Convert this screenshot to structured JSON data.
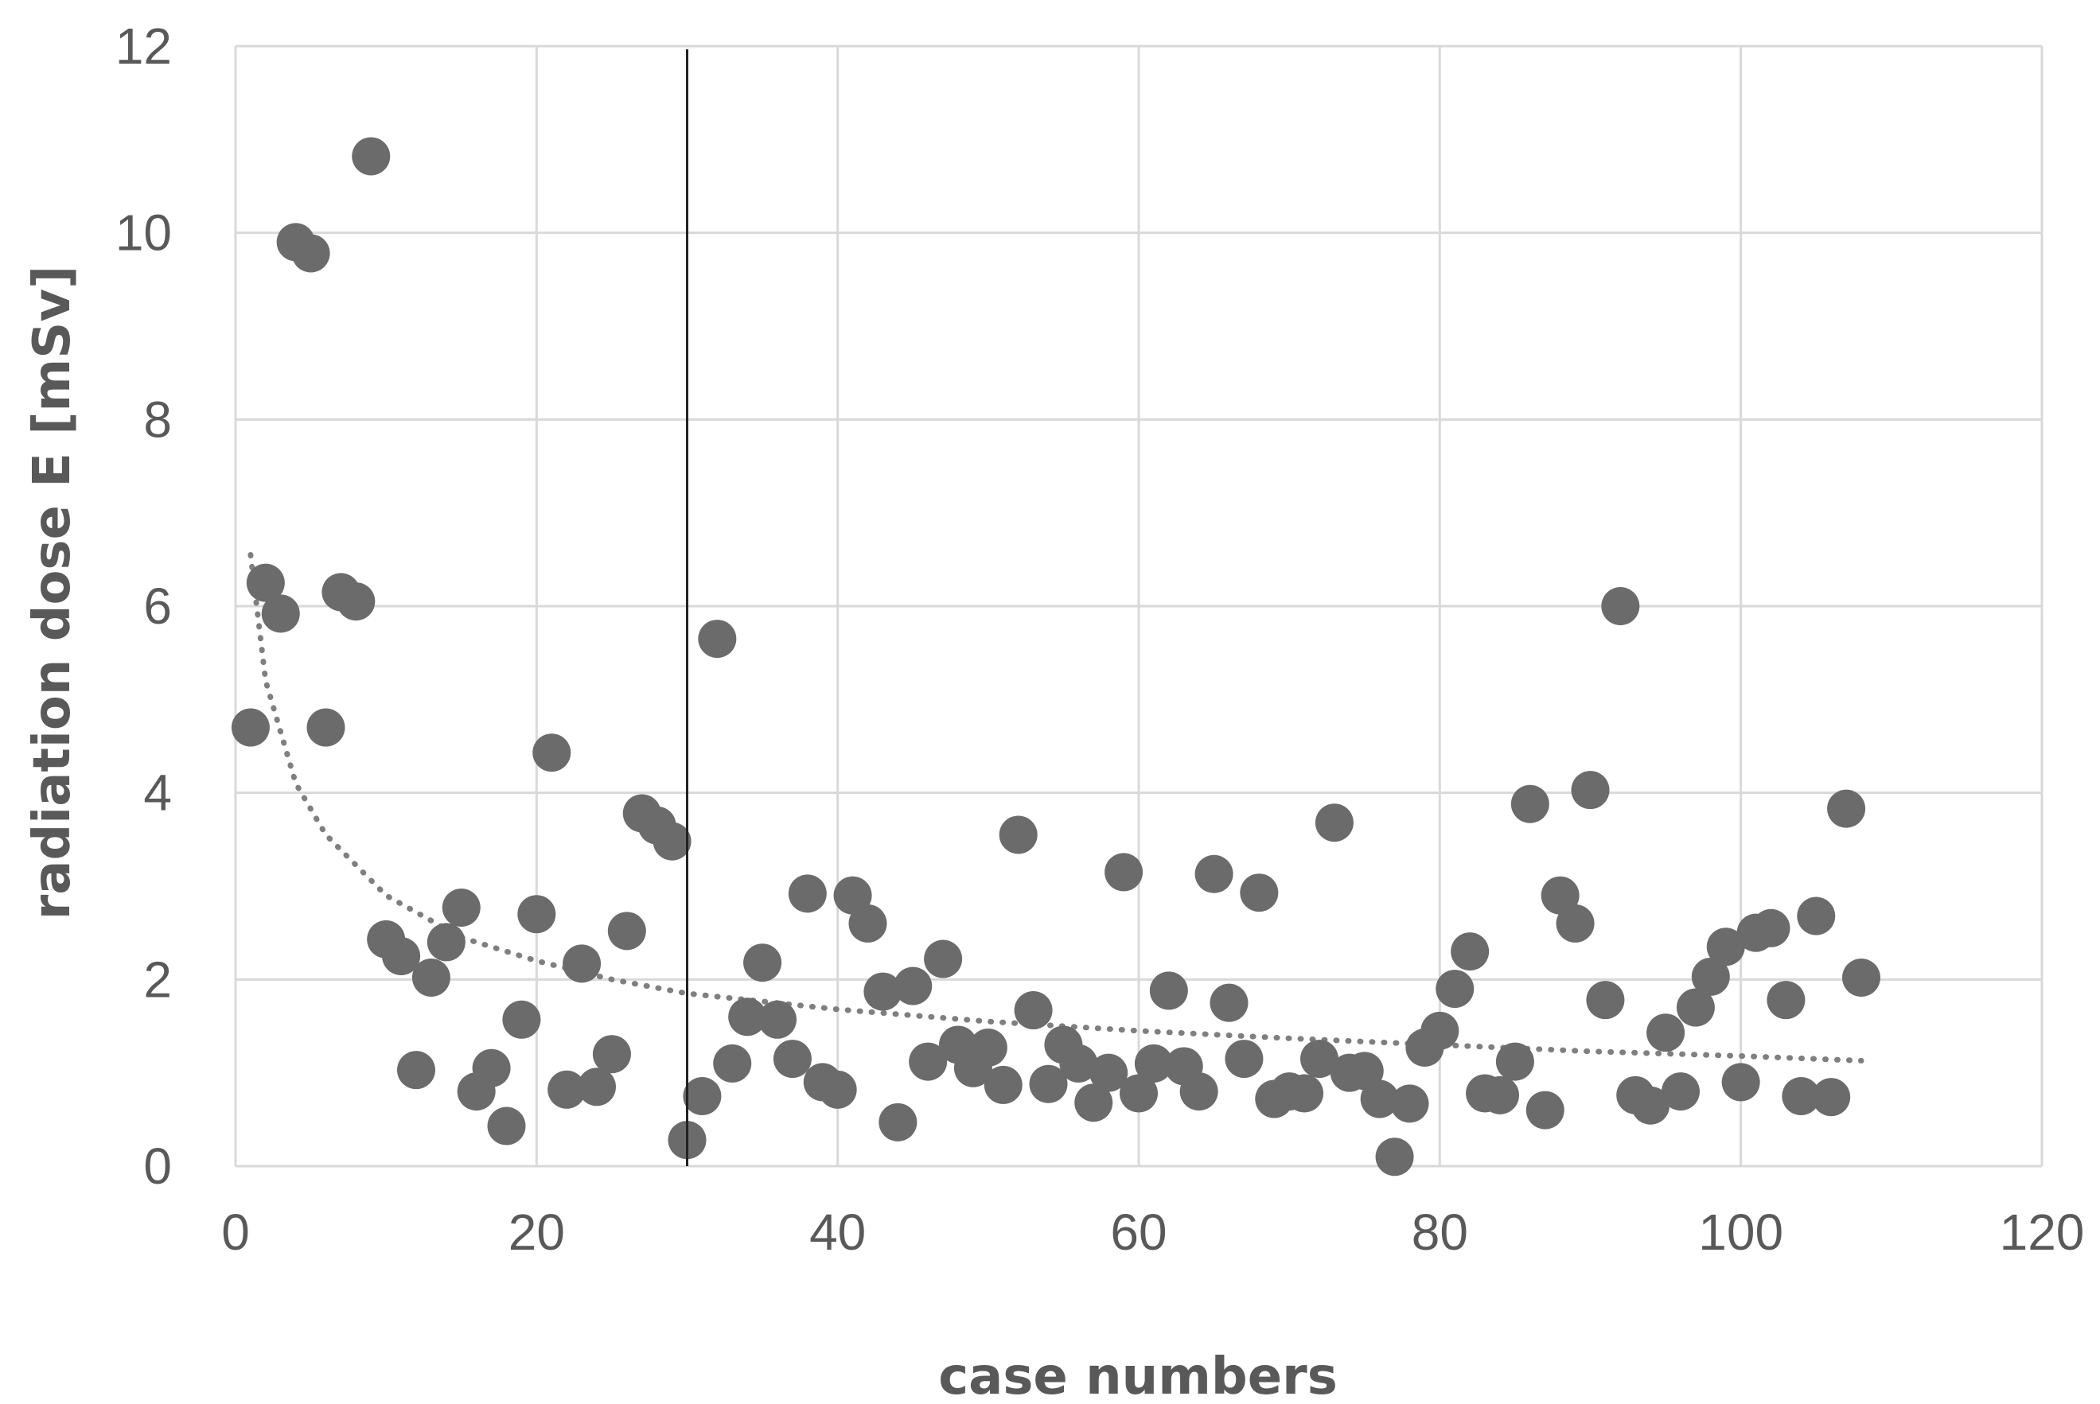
{
  "chart_data": {
    "type": "scatter",
    "title": "",
    "xlabel": "case numbers",
    "ylabel": "radiation dose E [mSv]",
    "xlim": [
      0,
      120
    ],
    "ylim": [
      0,
      12
    ],
    "x_ticks": [
      0,
      20,
      40,
      60,
      80,
      100,
      120
    ],
    "y_ticks": [
      0,
      2,
      4,
      6,
      8,
      10,
      12
    ],
    "grid": true,
    "legend": "none",
    "marker_color": "#6b6b6b",
    "vertical_reference_line_x": 30,
    "trendline": {
      "style": "dotted",
      "kind": "power",
      "x_range": [
        1,
        108
      ],
      "points": [
        [
          1,
          6.55
        ],
        [
          2,
          5.2
        ],
        [
          4,
          4.1
        ],
        [
          6,
          3.55
        ],
        [
          10,
          2.9
        ],
        [
          15,
          2.45
        ],
        [
          20,
          2.2
        ],
        [
          25,
          2.0
        ],
        [
          30,
          1.85
        ],
        [
          40,
          1.68
        ],
        [
          50,
          1.55
        ],
        [
          60,
          1.45
        ],
        [
          70,
          1.37
        ],
        [
          80,
          1.3
        ],
        [
          90,
          1.23
        ],
        [
          100,
          1.18
        ],
        [
          108,
          1.13
        ]
      ]
    },
    "series": [
      {
        "x": [
          1,
          2,
          3,
          4,
          5,
          6,
          7,
          8,
          9,
          10,
          11,
          12,
          13,
          14,
          15,
          16,
          17,
          18,
          19,
          20,
          21,
          22,
          23,
          24,
          25,
          26,
          27,
          28,
          29,
          30,
          31,
          32,
          33,
          34,
          35,
          36,
          37,
          38,
          39,
          40,
          41,
          42,
          43,
          44,
          45,
          46,
          47,
          48,
          49,
          50,
          51,
          52,
          53,
          54,
          55,
          56,
          57,
          58,
          59,
          60,
          61,
          62,
          63,
          64,
          65,
          66,
          67,
          68,
          69,
          70,
          71,
          72,
          73,
          74,
          75,
          76,
          77,
          78,
          79,
          80,
          81,
          82,
          83,
          84,
          85,
          86,
          87,
          88,
          89,
          90,
          91,
          92,
          93,
          94,
          95,
          96,
          97,
          98,
          99,
          100,
          101,
          102,
          103,
          104,
          105,
          106,
          107,
          108
        ],
        "y": [
          4.7,
          6.25,
          5.92,
          9.9,
          9.78,
          4.7,
          6.15,
          6.05,
          10.82,
          2.43,
          2.25,
          1.03,
          2.02,
          2.4,
          2.77,
          0.8,
          1.05,
          0.43,
          1.57,
          2.7,
          4.43,
          0.82,
          2.17,
          0.85,
          1.2,
          2.52,
          3.78,
          3.65,
          3.48,
          0.28,
          0.75,
          5.65,
          1.1,
          1.6,
          2.18,
          1.57,
          1.15,
          2.92,
          0.9,
          0.82,
          2.9,
          2.6,
          1.87,
          0.47,
          1.93,
          1.12,
          2.22,
          1.3,
          1.05,
          1.27,
          0.87,
          3.55,
          1.67,
          0.88,
          1.3,
          1.1,
          0.68,
          1.0,
          3.15,
          0.78,
          1.1,
          1.88,
          1.07,
          0.8,
          3.13,
          1.75,
          1.15,
          2.93,
          0.72,
          0.8,
          0.78,
          1.15,
          3.68,
          1.0,
          1.02,
          0.72,
          0.1,
          0.67,
          1.27,
          1.45,
          1.9,
          2.3,
          0.78,
          0.76,
          1.12,
          3.88,
          0.6,
          2.9,
          2.6,
          4.03,
          1.78,
          6.0,
          0.76,
          0.65,
          1.43,
          0.8,
          1.7,
          2.03,
          2.35,
          0.9,
          2.5,
          2.55,
          1.78,
          0.75,
          2.68,
          0.74,
          3.83,
          2.02
        ]
      }
    ]
  }
}
